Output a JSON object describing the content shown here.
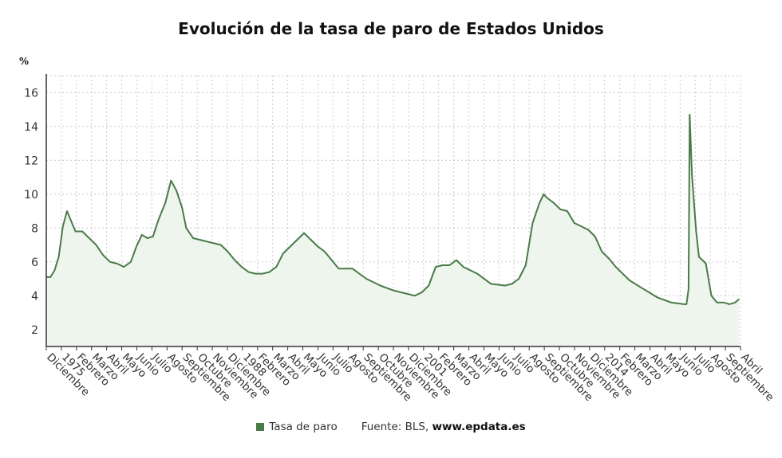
{
  "title": "Evolución de la tasa de paro de Estados Unidos",
  "legend": {
    "series_label": "Tasa de paro"
  },
  "source": {
    "prefix": "Fuente: BLS,",
    "site": "www.epdata.es"
  },
  "colors": {
    "line": "#4a7a48",
    "fill": "#eef5ec",
    "grid": "#c9c9c9",
    "axis": "#333333"
  },
  "chart_data": {
    "type": "area",
    "title": "Evolución de la tasa de paro de Estados Unidos",
    "ylabel": "%",
    "xlabel": "",
    "ylim": [
      1,
      17
    ],
    "yticks": [
      2,
      4,
      6,
      8,
      10,
      12,
      14,
      16
    ],
    "grid": true,
    "legend_placement": "bottom-center",
    "x_tick_labels": [
      "Diciembre",
      "1975",
      "Febrero",
      "Marzo",
      "Abril",
      "Mayo",
      "Junio",
      "Julio",
      "Agosto",
      "Septiembre",
      "Octubre",
      "Noviembre",
      "Diciembre",
      "1988",
      "Febrero",
      "Marzo",
      "Abril",
      "Mayo",
      "Junio",
      "Julio",
      "Agosto",
      "Septiembre",
      "Octubre",
      "Noviembre",
      "Diciembre",
      "2001",
      "Febrero",
      "Marzo",
      "Abril",
      "Mayo",
      "Junio",
      "Julio",
      "Agosto",
      "Septiembre",
      "Octubre",
      "Noviembre",
      "Diciembre",
      "2014",
      "Febrero",
      "Marzo",
      "Abril",
      "Mayo",
      "Junio",
      "Julio",
      "Agosto",
      "Septiembre",
      "Abril"
    ],
    "series": [
      {
        "name": "Tasa de paro",
        "x": [
          1973.9,
          1974.2,
          1974.5,
          1974.8,
          1975.1,
          1975.4,
          1975.7,
          1976.0,
          1976.5,
          1977.0,
          1977.5,
          1978.0,
          1978.5,
          1979.0,
          1979.5,
          1980.0,
          1980.4,
          1980.8,
          1981.2,
          1981.6,
          1982.0,
          1982.5,
          1982.9,
          1983.3,
          1983.7,
          1984.0,
          1984.5,
          1985.0,
          1985.5,
          1986.0,
          1986.5,
          1987.0,
          1987.5,
          1988.0,
          1988.5,
          1989.0,
          1989.5,
          1990.0,
          1990.5,
          1991.0,
          1991.5,
          1992.0,
          1992.5,
          1993.0,
          1993.5,
          1994.0,
          1994.5,
          1995.0,
          1995.5,
          1996.0,
          1997.0,
          1998.0,
          1999.0,
          2000.0,
          2000.5,
          2001.0,
          2001.5,
          2002.0,
          2002.5,
          2003.0,
          2003.5,
          2004.0,
          2004.5,
          2005.0,
          2006.0,
          2007.0,
          2007.5,
          2008.0,
          2008.5,
          2009.0,
          2009.5,
          2009.8,
          2010.0,
          2010.5,
          2011.0,
          2011.5,
          2012.0,
          2012.5,
          2013.0,
          2013.5,
          2014.0,
          2014.5,
          2015.0,
          2015.5,
          2016.0,
          2017.0,
          2018.0,
          2019.0,
          2019.9,
          2020.1,
          2020.25,
          2020.33,
          2020.5,
          2020.8,
          2021.0,
          2021.5,
          2021.9,
          2022.3,
          2022.8,
          2023.2,
          2023.6,
          2023.9
        ],
        "y": [
          5.1,
          5.1,
          5.5,
          6.3,
          8.1,
          9.0,
          8.4,
          7.8,
          7.8,
          7.4,
          7.0,
          6.4,
          6.0,
          5.9,
          5.7,
          6.0,
          6.9,
          7.6,
          7.4,
          7.5,
          8.5,
          9.5,
          10.8,
          10.2,
          9.2,
          8.0,
          7.4,
          7.3,
          7.2,
          7.1,
          7.0,
          6.6,
          6.1,
          5.7,
          5.4,
          5.3,
          5.3,
          5.4,
          5.7,
          6.5,
          6.9,
          7.3,
          7.7,
          7.3,
          6.9,
          6.6,
          6.1,
          5.6,
          5.6,
          5.6,
          5.0,
          4.6,
          4.3,
          4.1,
          4.0,
          4.2,
          4.6,
          5.7,
          5.8,
          5.8,
          6.1,
          5.7,
          5.5,
          5.3,
          4.7,
          4.6,
          4.7,
          5.0,
          5.8,
          8.3,
          9.5,
          10.0,
          9.8,
          9.5,
          9.1,
          9.0,
          8.3,
          8.1,
          7.9,
          7.5,
          6.6,
          6.2,
          5.7,
          5.3,
          4.9,
          4.4,
          3.9,
          3.6,
          3.5,
          3.5,
          4.4,
          14.7,
          11.1,
          7.8,
          6.3,
          5.9,
          4.0,
          3.6,
          3.6,
          3.5,
          3.6,
          3.8
        ]
      }
    ]
  }
}
